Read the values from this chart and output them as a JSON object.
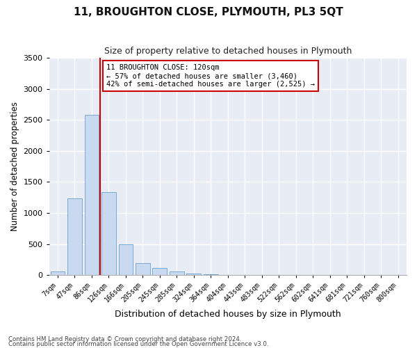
{
  "title": "11, BROUGHTON CLOSE, PLYMOUTH, PL3 5QT",
  "subtitle": "Size of property relative to detached houses in Plymouth",
  "xlabel": "Distribution of detached houses by size in Plymouth",
  "ylabel": "Number of detached properties",
  "bar_color": "#c9d9f0",
  "bar_edge_color": "#7aaad0",
  "categories": [
    "7sqm",
    "47sqm",
    "86sqm",
    "126sqm",
    "166sqm",
    "205sqm",
    "245sqm",
    "285sqm",
    "324sqm",
    "364sqm",
    "404sqm",
    "443sqm",
    "483sqm",
    "522sqm",
    "562sqm",
    "602sqm",
    "641sqm",
    "681sqm",
    "721sqm",
    "760sqm",
    "800sqm"
  ],
  "values": [
    55,
    1230,
    2580,
    1340,
    490,
    195,
    110,
    60,
    20,
    8,
    3,
    2,
    1,
    0,
    0,
    0,
    0,
    0,
    0,
    0,
    0
  ],
  "ylim": [
    0,
    3500
  ],
  "yticks": [
    0,
    500,
    1000,
    1500,
    2000,
    2500,
    3000,
    3500
  ],
  "red_line_color": "#cc0000",
  "annotation_text": "11 BROUGHTON CLOSE: 120sqm\n← 57% of detached houses are smaller (3,460)\n42% of semi-detached houses are larger (2,525) →",
  "annotation_box_color": "#ffffff",
  "annotation_box_edge": "#cc0000",
  "footer_line1": "Contains HM Land Registry data © Crown copyright and database right 2024.",
  "footer_line2": "Contains public sector information licensed under the Open Government Licence v3.0.",
  "plot_bg_color": "#e8edf5"
}
